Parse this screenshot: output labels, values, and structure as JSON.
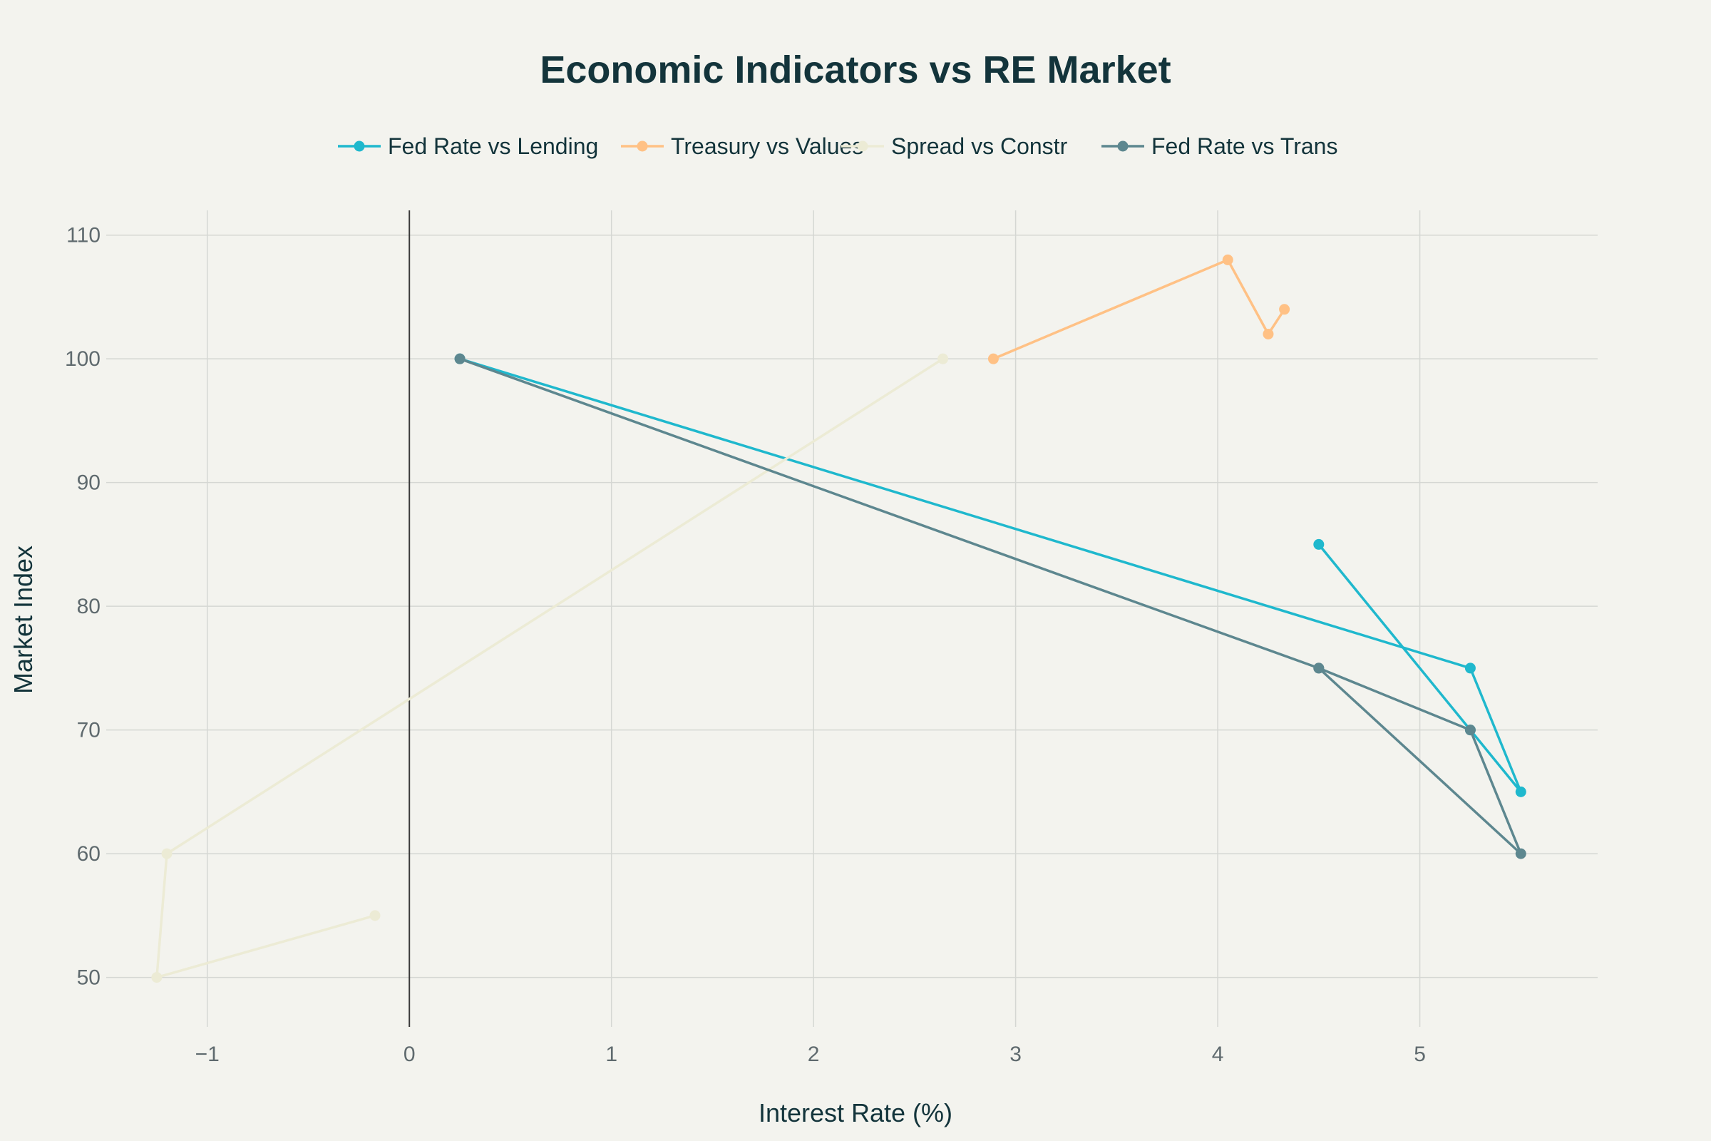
{
  "chart_data": {
    "type": "line",
    "title": "Economic Indicators vs RE Market",
    "xlabel": "Interest Rate (%)",
    "ylabel": "Market Index",
    "xlim": [
      -1.5,
      5.88
    ],
    "ylim": [
      46,
      112
    ],
    "x_ticks": [
      -1,
      0,
      1,
      2,
      3,
      4,
      5
    ],
    "x_tick_labels": [
      "−1",
      "0",
      "1",
      "2",
      "3",
      "4",
      "5"
    ],
    "y_ticks": [
      50,
      60,
      70,
      80,
      90,
      100,
      110
    ],
    "y_tick_labels": [
      "50",
      "60",
      "70",
      "80",
      "90",
      "100",
      "110"
    ],
    "grid": true,
    "zero_line": true,
    "legend_position": "top-center",
    "series": [
      {
        "name": "Fed Rate vs Lending",
        "color": "#1FB8CD",
        "points": [
          {
            "x": 0.25,
            "y": 100
          },
          {
            "x": 5.25,
            "y": 75
          },
          {
            "x": 5.5,
            "y": 65
          },
          {
            "x": 5.25,
            "y": 70
          },
          {
            "x": 4.5,
            "y": 85
          }
        ]
      },
      {
        "name": "Treasury vs Values",
        "color": "#FFC185",
        "points": [
          {
            "x": 2.89,
            "y": 100
          },
          {
            "x": 4.05,
            "y": 108
          },
          {
            "x": 4.25,
            "y": 102
          },
          {
            "x": 4.33,
            "y": 104
          }
        ]
      },
      {
        "name": "Spread vs Constr",
        "color": "#ECEBD5",
        "points": [
          {
            "x": 2.64,
            "y": 100
          },
          {
            "x": -1.2,
            "y": 60
          },
          {
            "x": -1.25,
            "y": 50
          },
          {
            "x": -0.17,
            "y": 55
          }
        ]
      },
      {
        "name": "Fed Rate vs Trans",
        "color": "#5D878F",
        "points": [
          {
            "x": 0.25,
            "y": 100
          },
          {
            "x": 4.5,
            "y": 75
          },
          {
            "x": 5.25,
            "y": 70
          },
          {
            "x": 5.5,
            "y": 60
          },
          {
            "x": 4.5,
            "y": 75
          }
        ]
      }
    ]
  }
}
